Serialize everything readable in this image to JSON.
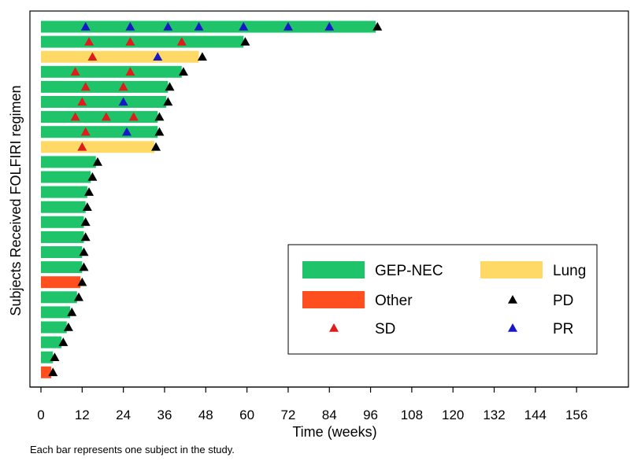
{
  "chart_data": {
    "type": "bar",
    "orientation": "horizontal",
    "chart_style": "swimmer plot",
    "xlabel": "Time (weeks)",
    "ylabel": "Subjects Received FOLFIRI regimen",
    "footnote": "Each bar represents one subject in the study.",
    "xlim": [
      0,
      160
    ],
    "xticks": [
      0,
      12,
      24,
      36,
      48,
      60,
      72,
      84,
      96,
      108,
      120,
      132,
      144,
      156
    ],
    "grid": false,
    "legend_position": "lower-right",
    "legend": {
      "bars": [
        {
          "label": "GEP-NEC",
          "key": "GEP-NEC"
        },
        {
          "label": "Lung",
          "key": "Lung"
        },
        {
          "label": "Other",
          "key": "Other"
        }
      ],
      "markers": [
        {
          "label": "PD",
          "key": "PD"
        },
        {
          "label": "SD",
          "key": "SD"
        },
        {
          "label": "PR",
          "key": "PR"
        }
      ]
    },
    "colors": {
      "GEP-NEC": "#1fc46a",
      "Lung": "#ffd966",
      "Other": "#ff4f1f",
      "PD": "#000000",
      "SD": "#e01b1b",
      "PR": "#1717c8"
    },
    "subjects": [
      {
        "group": "GEP-NEC",
        "duration": 97.5,
        "SD": [],
        "PR": [
          13,
          26,
          37,
          46,
          59,
          72,
          84
        ],
        "PD": [
          98
        ]
      },
      {
        "group": "GEP-NEC",
        "duration": 59,
        "SD": [
          14,
          26,
          41
        ],
        "PR": [],
        "PD": [
          59.5
        ]
      },
      {
        "group": "Lung",
        "duration": 46,
        "SD": [
          15
        ],
        "PR": [
          34
        ],
        "PD": [
          47
        ]
      },
      {
        "group": "GEP-NEC",
        "duration": 41,
        "SD": [
          10,
          26
        ],
        "PR": [],
        "PD": [
          41.5
        ]
      },
      {
        "group": "GEP-NEC",
        "duration": 37,
        "SD": [
          13,
          24
        ],
        "PR": [],
        "PD": [
          37.5
        ]
      },
      {
        "group": "GEP-NEC",
        "duration": 36.5,
        "SD": [
          12
        ],
        "PR": [
          24
        ],
        "PD": [
          37
        ]
      },
      {
        "group": "GEP-NEC",
        "duration": 34,
        "SD": [
          10,
          19,
          27
        ],
        "PR": [],
        "PD": [
          34.5
        ]
      },
      {
        "group": "GEP-NEC",
        "duration": 34,
        "SD": [
          13
        ],
        "PR": [
          25
        ],
        "PD": [
          34.5
        ]
      },
      {
        "group": "Lung",
        "duration": 33,
        "SD": [
          12
        ],
        "PR": [],
        "PD": [
          33.5
        ]
      },
      {
        "group": "GEP-NEC",
        "duration": 16,
        "SD": [],
        "PR": [],
        "PD": [
          16.5
        ]
      },
      {
        "group": "GEP-NEC",
        "duration": 14.5,
        "SD": [],
        "PR": [],
        "PD": [
          15
        ]
      },
      {
        "group": "GEP-NEC",
        "duration": 13.5,
        "SD": [],
        "PR": [],
        "PD": [
          14
        ]
      },
      {
        "group": "GEP-NEC",
        "duration": 13,
        "SD": [],
        "PR": [],
        "PD": [
          13.5
        ]
      },
      {
        "group": "GEP-NEC",
        "duration": 12.5,
        "SD": [],
        "PR": [],
        "PD": [
          13
        ]
      },
      {
        "group": "GEP-NEC",
        "duration": 12.5,
        "SD": [],
        "PR": [],
        "PD": [
          13
        ]
      },
      {
        "group": "GEP-NEC",
        "duration": 12,
        "SD": [],
        "PR": [],
        "PD": [
          12.5
        ]
      },
      {
        "group": "GEP-NEC",
        "duration": 12,
        "SD": [],
        "PR": [],
        "PD": [
          12.5
        ]
      },
      {
        "group": "Other",
        "duration": 11.5,
        "SD": [],
        "PR": [],
        "PD": [
          12
        ]
      },
      {
        "group": "GEP-NEC",
        "duration": 10.5,
        "SD": [],
        "PR": [],
        "PD": [
          11
        ]
      },
      {
        "group": "GEP-NEC",
        "duration": 8.5,
        "SD": [],
        "PR": [],
        "PD": [
          9
        ]
      },
      {
        "group": "GEP-NEC",
        "duration": 7.5,
        "SD": [],
        "PR": [],
        "PD": [
          8
        ]
      },
      {
        "group": "GEP-NEC",
        "duration": 6,
        "SD": [],
        "PR": [],
        "PD": [
          6.5
        ]
      },
      {
        "group": "GEP-NEC",
        "duration": 3.5,
        "SD": [],
        "PR": [],
        "PD": [
          4
        ]
      },
      {
        "group": "Other",
        "duration": 3,
        "SD": [],
        "PR": [],
        "PD": [
          3.5
        ]
      }
    ]
  }
}
